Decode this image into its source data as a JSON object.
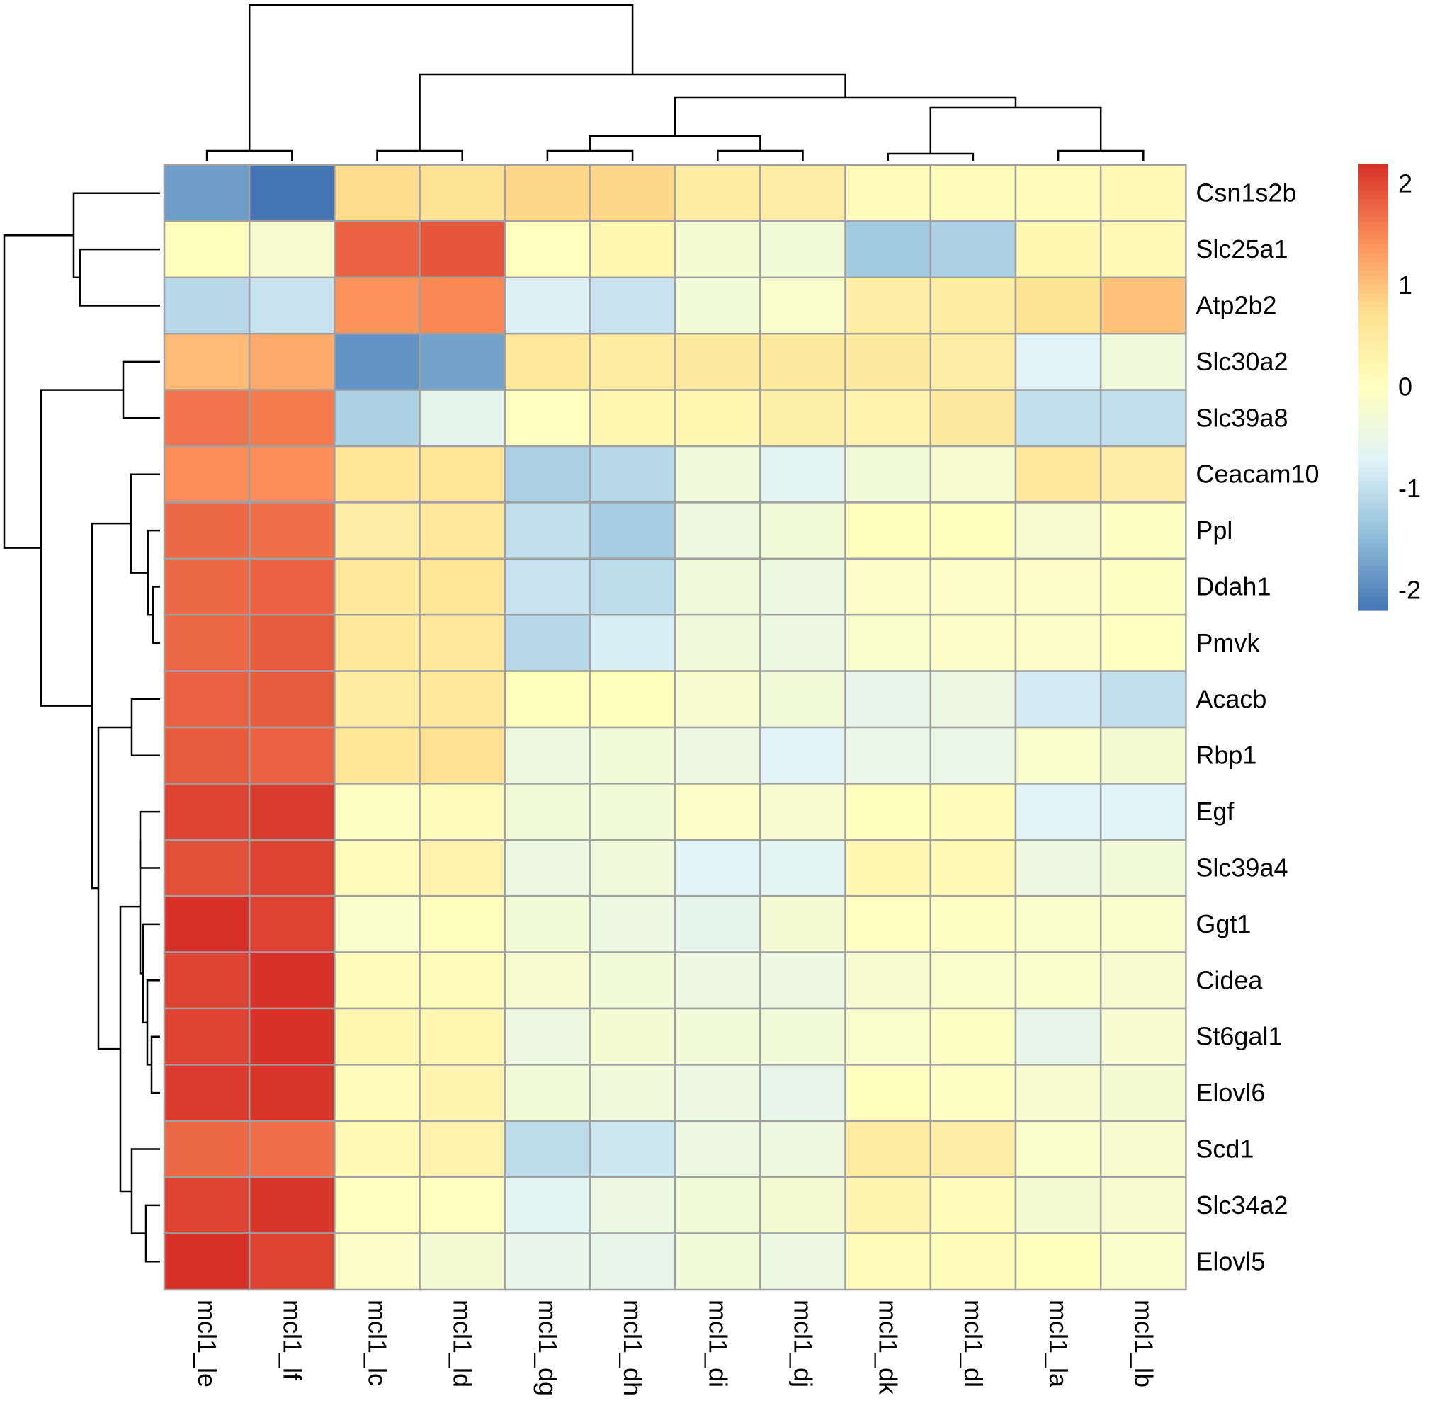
{
  "chart_data": {
    "type": "heatmap",
    "title": "",
    "xlabel": "",
    "ylabel": "",
    "columns": [
      "mcl1_le",
      "mcl1_lf",
      "mcl1_lc",
      "mcl1_ld",
      "mcl1_dg",
      "mcl1_dh",
      "mcl1_di",
      "mcl1_dj",
      "mcl1_dk",
      "mcl1_dl",
      "mcl1_la",
      "mcl1_lb"
    ],
    "rows": [
      "Csn1s2b",
      "Slc25a1",
      "Atp2b2",
      "Slc30a2",
      "Slc39a8",
      "Ceacam10",
      "Ppl",
      "Ddah1",
      "Pmvk",
      "Acacb",
      "Rbp1",
      "Egf",
      "Slc39a4",
      "Ggt1",
      "Cidea",
      "St6gal1",
      "Elovl6",
      "Scd1",
      "Slc34a2",
      "Elovl5"
    ],
    "values": [
      [
        -1.8,
        -2.2,
        0.75,
        0.65,
        0.8,
        0.8,
        0.45,
        0.4,
        0.1,
        0.1,
        0.1,
        0.15
      ],
      [
        0.05,
        -0.2,
        1.8,
        1.9,
        0.0,
        0.2,
        -0.25,
        -0.3,
        -1.3,
        -1.2,
        0.2,
        0.15
      ],
      [
        -1.1,
        -0.95,
        1.4,
        1.5,
        -0.75,
        -0.95,
        -0.3,
        -0.15,
        0.4,
        0.45,
        0.65,
        1.0
      ],
      [
        1.05,
        1.2,
        -1.9,
        -1.75,
        0.55,
        0.45,
        0.5,
        0.5,
        0.5,
        0.4,
        -0.7,
        -0.35
      ],
      [
        1.65,
        1.6,
        -1.2,
        -0.6,
        0.0,
        0.2,
        0.2,
        0.35,
        0.3,
        0.5,
        -1.0,
        -1.0
      ],
      [
        1.45,
        1.45,
        0.6,
        0.6,
        -1.2,
        -1.1,
        -0.35,
        -0.65,
        -0.3,
        -0.2,
        0.55,
        0.4
      ],
      [
        1.75,
        1.7,
        0.4,
        0.55,
        -1.0,
        -1.25,
        -0.4,
        -0.3,
        0.05,
        0.05,
        -0.2,
        -0.05
      ],
      [
        1.75,
        1.8,
        0.55,
        0.6,
        -0.95,
        -1.05,
        -0.35,
        -0.45,
        -0.1,
        -0.1,
        -0.1,
        -0.05
      ],
      [
        1.75,
        1.85,
        0.55,
        0.55,
        -1.1,
        -0.8,
        -0.35,
        -0.45,
        -0.15,
        -0.1,
        -0.1,
        0.0
      ],
      [
        1.8,
        1.85,
        0.45,
        0.55,
        0.05,
        0.05,
        -0.2,
        -0.3,
        -0.55,
        -0.45,
        -0.85,
        -1.0
      ],
      [
        1.85,
        1.8,
        0.6,
        0.7,
        -0.4,
        -0.3,
        -0.45,
        -0.7,
        -0.5,
        -0.5,
        -0.15,
        -0.25
      ],
      [
        2.05,
        2.1,
        -0.05,
        0.1,
        -0.3,
        -0.3,
        -0.1,
        -0.2,
        0.05,
        0.1,
        -0.7,
        -0.7
      ],
      [
        1.95,
        2.05,
        0.1,
        0.3,
        -0.45,
        -0.35,
        -0.7,
        -0.65,
        0.2,
        0.15,
        -0.45,
        -0.3
      ],
      [
        2.25,
        2.05,
        -0.15,
        0.05,
        -0.3,
        -0.45,
        -0.6,
        -0.25,
        0.0,
        -0.05,
        -0.15,
        -0.15
      ],
      [
        2.05,
        2.25,
        0.1,
        0.1,
        -0.2,
        -0.3,
        -0.45,
        -0.45,
        -0.2,
        -0.15,
        -0.15,
        -0.2
      ],
      [
        2.05,
        2.2,
        0.2,
        0.2,
        -0.45,
        -0.25,
        -0.3,
        -0.3,
        -0.15,
        -0.05,
        -0.55,
        -0.2
      ],
      [
        2.1,
        2.15,
        0.1,
        0.25,
        -0.3,
        -0.35,
        -0.45,
        -0.55,
        0.05,
        -0.05,
        -0.2,
        -0.25
      ],
      [
        1.75,
        1.7,
        0.15,
        0.3,
        -1.05,
        -0.9,
        -0.45,
        -0.4,
        0.45,
        0.4,
        -0.15,
        -0.2
      ],
      [
        2.05,
        2.15,
        0.0,
        0.0,
        -0.65,
        -0.45,
        -0.3,
        -0.25,
        0.25,
        0.1,
        -0.25,
        -0.2
      ],
      [
        2.2,
        2.05,
        -0.1,
        -0.25,
        -0.55,
        -0.55,
        -0.3,
        -0.45,
        0.1,
        0.1,
        0.05,
        -0.15
      ]
    ],
    "color_scale": {
      "min": -2.2,
      "max": 2.2,
      "low_color": "#4575b4",
      "mid_color": "#ffffbf",
      "high_color": "#d73027",
      "ticks": [
        2,
        1,
        0,
        -1,
        -2
      ]
    },
    "legend_position": "right",
    "column_dendrogram": true,
    "row_dendrogram": true,
    "cell_border_color": "#a0a0a0"
  }
}
